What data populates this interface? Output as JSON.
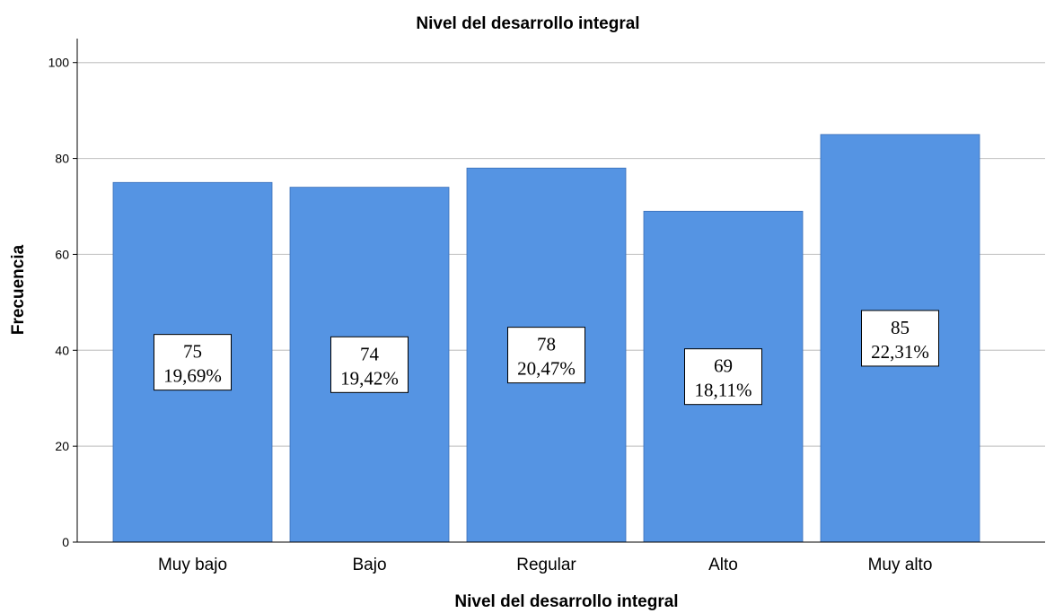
{
  "chart_data": {
    "type": "bar",
    "title": "Nivel del desarrollo integral",
    "xlabel": "Nivel del desarrollo integral",
    "ylabel": "Frecuencia",
    "categories": [
      "Muy bajo",
      "Bajo",
      "Regular",
      "Alto",
      "Muy alto"
    ],
    "values": [
      75,
      74,
      78,
      69,
      85
    ],
    "percent_labels": [
      "19,69%",
      "19,42%",
      "20,47%",
      "18,11%",
      "22,31%"
    ],
    "ylim": [
      0,
      105
    ],
    "yticks": [
      0,
      20,
      40,
      60,
      80,
      100
    ],
    "grid": true,
    "bar_color": "#5594e3",
    "bar_edge_color": "#3a6fb8"
  }
}
